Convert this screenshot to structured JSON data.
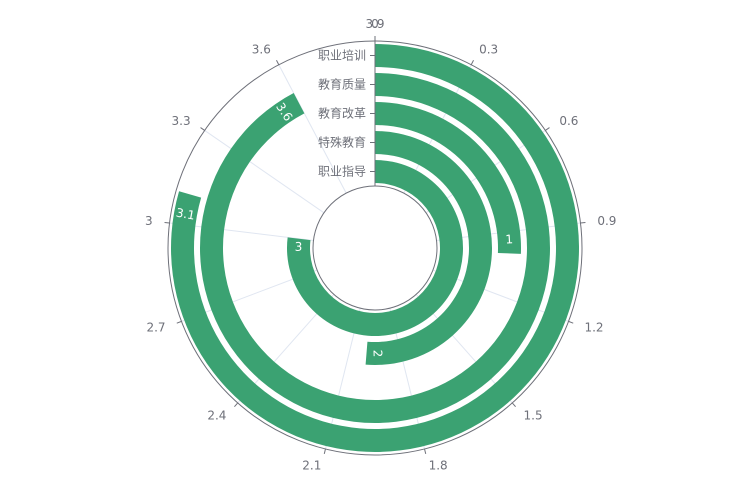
{
  "chart_data": {
    "type": "polar-bar",
    "angle_axis": {
      "min": 0,
      "max": 3.9,
      "interval": 0.3,
      "tick_labels": [
        "0",
        "0.3",
        "0.6",
        "0.9",
        "1.2",
        "1.5",
        "1.8",
        "2.1",
        "2.4",
        "2.7",
        "3",
        "3.3",
        "3.6",
        "3.9"
      ]
    },
    "categories": [
      "职业指导",
      "特殊教育",
      "教育改革",
      "教育质量",
      "职业培训"
    ],
    "values": [
      3,
      2,
      1,
      3.6,
      3.1
    ],
    "data_labels": [
      "3",
      "2",
      "1",
      "3.6",
      "3.1"
    ],
    "series_color": "#3ba272",
    "grid": true
  }
}
